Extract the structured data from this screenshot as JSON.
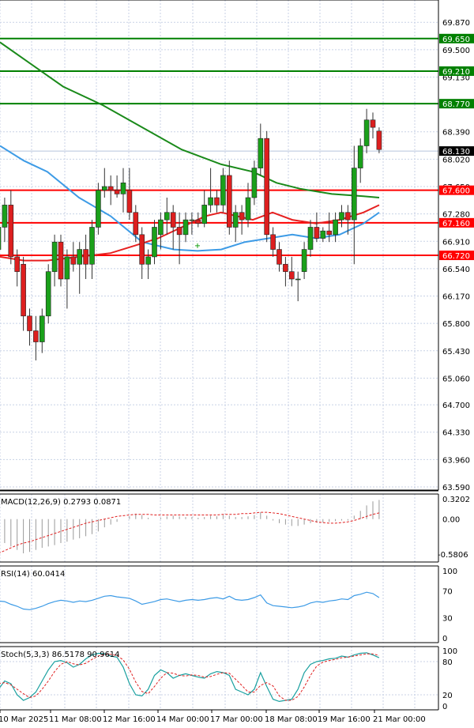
{
  "chart_data": {
    "type": "candlestick",
    "price_ticks": [
      "69.870",
      "69.500",
      "69.130",
      "68.770",
      "68.390",
      "68.020",
      "67.650",
      "67.280",
      "66.910",
      "66.540",
      "66.170",
      "65.800",
      "65.430",
      "65.060",
      "64.700",
      "64.330",
      "63.960",
      "63.590"
    ],
    "price_range": [
      63.59,
      70.15
    ],
    "hlines": [
      {
        "value": 69.65,
        "label": "69.650",
        "color": "#008000"
      },
      {
        "value": 69.21,
        "label": "69.210",
        "color": "#008000"
      },
      {
        "value": 68.77,
        "label": "68.770",
        "color": "#008000"
      },
      {
        "value": 67.6,
        "label": "67.600",
        "color": "#ff0000"
      },
      {
        "value": 67.16,
        "label": "67.160",
        "color": "#ff0000"
      },
      {
        "value": 66.72,
        "label": "66.720",
        "color": "#ff0000"
      }
    ],
    "current_price": {
      "value": 68.13,
      "label": "68.130"
    },
    "candles": [
      {
        "o": 66.8,
        "h": 67.2,
        "l": 66.5,
        "c": 67.1
      },
      {
        "o": 67.1,
        "h": 67.5,
        "l": 66.9,
        "c": 67.4
      },
      {
        "o": 67.4,
        "h": 67.6,
        "l": 66.6,
        "c": 66.7
      },
      {
        "o": 66.7,
        "h": 66.8,
        "l": 66.3,
        "c": 66.5
      },
      {
        "o": 66.6,
        "h": 66.7,
        "l": 65.7,
        "c": 65.9
      },
      {
        "o": 65.9,
        "h": 66.0,
        "l": 65.5,
        "c": 65.7
      },
      {
        "o": 65.7,
        "h": 65.9,
        "l": 65.3,
        "c": 65.55
      },
      {
        "o": 65.55,
        "h": 66.0,
        "l": 65.4,
        "c": 65.9
      },
      {
        "o": 65.9,
        "h": 66.6,
        "l": 65.8,
        "c": 66.5
      },
      {
        "o": 66.5,
        "h": 67.0,
        "l": 66.3,
        "c": 66.9
      },
      {
        "o": 66.9,
        "h": 67.0,
        "l": 66.3,
        "c": 66.4
      },
      {
        "o": 66.4,
        "h": 66.8,
        "l": 66.0,
        "c": 66.7
      },
      {
        "o": 66.7,
        "h": 66.9,
        "l": 66.5,
        "c": 66.6
      },
      {
        "o": 66.6,
        "h": 66.9,
        "l": 66.2,
        "c": 66.8
      },
      {
        "o": 66.8,
        "h": 67.0,
        "l": 66.4,
        "c": 66.6
      },
      {
        "o": 66.6,
        "h": 67.2,
        "l": 66.4,
        "c": 67.1
      },
      {
        "o": 67.1,
        "h": 67.7,
        "l": 67.0,
        "c": 67.6
      },
      {
        "o": 67.6,
        "h": 67.9,
        "l": 67.5,
        "c": 67.65
      },
      {
        "o": 67.65,
        "h": 67.8,
        "l": 67.4,
        "c": 67.6
      },
      {
        "o": 67.6,
        "h": 67.8,
        "l": 67.5,
        "c": 67.55
      },
      {
        "o": 67.55,
        "h": 67.9,
        "l": 67.3,
        "c": 67.7
      },
      {
        "o": 67.6,
        "h": 67.9,
        "l": 67.2,
        "c": 67.3
      },
      {
        "o": 67.3,
        "h": 67.4,
        "l": 66.9,
        "c": 67.0
      },
      {
        "o": 67.0,
        "h": 67.1,
        "l": 66.4,
        "c": 66.6
      },
      {
        "o": 66.6,
        "h": 66.8,
        "l": 66.4,
        "c": 66.7
      },
      {
        "o": 66.7,
        "h": 67.2,
        "l": 66.6,
        "c": 67.1
      },
      {
        "o": 67.0,
        "h": 67.3,
        "l": 66.8,
        "c": 67.2
      },
      {
        "o": 67.2,
        "h": 67.5,
        "l": 67.0,
        "c": 67.3
      },
      {
        "o": 67.3,
        "h": 67.4,
        "l": 66.8,
        "c": 67.1
      },
      {
        "o": 67.1,
        "h": 67.3,
        "l": 66.6,
        "c": 67.0
      },
      {
        "o": 67.0,
        "h": 67.3,
        "l": 66.9,
        "c": 67.2
      },
      {
        "o": 67.2,
        "h": 67.3,
        "l": 67.0,
        "c": 67.2
      },
      {
        "o": 67.2,
        "h": 67.3,
        "l": 67.1,
        "c": 67.15
      },
      {
        "o": 67.15,
        "h": 67.6,
        "l": 67.1,
        "c": 67.4
      },
      {
        "o": 67.4,
        "h": 67.9,
        "l": 67.3,
        "c": 67.5
      },
      {
        "o": 67.5,
        "h": 67.6,
        "l": 67.3,
        "c": 67.4
      },
      {
        "o": 67.4,
        "h": 67.9,
        "l": 67.3,
        "c": 67.8
      },
      {
        "o": 67.8,
        "h": 68.0,
        "l": 67.0,
        "c": 67.1
      },
      {
        "o": 67.1,
        "h": 67.4,
        "l": 66.9,
        "c": 67.3
      },
      {
        "o": 67.3,
        "h": 67.4,
        "l": 67.0,
        "c": 67.2
      },
      {
        "o": 67.2,
        "h": 67.7,
        "l": 67.1,
        "c": 67.5
      },
      {
        "o": 67.5,
        "h": 68.0,
        "l": 67.4,
        "c": 67.9
      },
      {
        "o": 67.9,
        "h": 68.5,
        "l": 67.8,
        "c": 68.3
      },
      {
        "o": 68.3,
        "h": 68.4,
        "l": 66.9,
        "c": 67.0
      },
      {
        "o": 67.0,
        "h": 67.1,
        "l": 66.7,
        "c": 66.8
      },
      {
        "o": 66.8,
        "h": 66.9,
        "l": 66.5,
        "c": 66.6
      },
      {
        "o": 66.6,
        "h": 66.7,
        "l": 66.3,
        "c": 66.5
      },
      {
        "o": 66.5,
        "h": 66.7,
        "l": 66.3,
        "c": 66.4
      },
      {
        "o": 66.4,
        "h": 66.5,
        "l": 66.1,
        "c": 66.4
      },
      {
        "o": 66.5,
        "h": 66.9,
        "l": 66.4,
        "c": 66.8
      },
      {
        "o": 66.8,
        "h": 67.2,
        "l": 66.7,
        "c": 67.1
      },
      {
        "o": 67.1,
        "h": 67.3,
        "l": 66.9,
        "c": 66.95
      },
      {
        "o": 66.95,
        "h": 67.1,
        "l": 66.9,
        "c": 67.05
      },
      {
        "o": 67.05,
        "h": 67.3,
        "l": 66.9,
        "c": 67.0
      },
      {
        "o": 67.0,
        "h": 67.3,
        "l": 66.9,
        "c": 67.2
      },
      {
        "o": 67.2,
        "h": 67.4,
        "l": 67.1,
        "c": 67.3
      },
      {
        "o": 67.3,
        "h": 67.4,
        "l": 67.0,
        "c": 67.2
      },
      {
        "o": 67.2,
        "h": 68.2,
        "l": 66.6,
        "c": 67.9
      },
      {
        "o": 67.9,
        "h": 68.3,
        "l": 67.7,
        "c": 68.2
      },
      {
        "o": 68.2,
        "h": 68.7,
        "l": 68.1,
        "c": 68.55
      },
      {
        "o": 68.55,
        "h": 68.65,
        "l": 68.3,
        "c": 68.45
      },
      {
        "o": 68.4,
        "h": 68.45,
        "l": 68.1,
        "c": 68.15
      }
    ],
    "ma_green": [
      [
        0,
        69.6
      ],
      [
        40,
        69.3
      ],
      [
        80,
        69.0
      ],
      [
        130,
        68.75
      ],
      [
        180,
        68.45
      ],
      [
        230,
        68.15
      ],
      [
        280,
        67.95
      ],
      [
        320,
        67.85
      ],
      [
        350,
        67.7
      ],
      [
        380,
        67.62
      ],
      [
        420,
        67.55
      ],
      [
        460,
        67.52
      ],
      [
        480,
        67.5
      ]
    ],
    "ma_blue": [
      [
        0,
        68.2
      ],
      [
        30,
        68.0
      ],
      [
        60,
        67.85
      ],
      [
        100,
        67.5
      ],
      [
        140,
        67.25
      ],
      [
        180,
        66.9
      ],
      [
        220,
        66.8
      ],
      [
        250,
        66.78
      ],
      [
        280,
        66.8
      ],
      [
        310,
        66.9
      ],
      [
        340,
        66.95
      ],
      [
        370,
        67.0
      ],
      [
        400,
        66.95
      ],
      [
        430,
        67.0
      ],
      [
        460,
        67.15
      ],
      [
        480,
        67.3
      ]
    ],
    "ma_red": [
      [
        0,
        66.7
      ],
      [
        30,
        66.65
      ],
      [
        60,
        66.65
      ],
      [
        100,
        66.7
      ],
      [
        140,
        66.75
      ],
      [
        170,
        66.85
      ],
      [
        200,
        66.95
      ],
      [
        230,
        67.1
      ],
      [
        260,
        67.25
      ],
      [
        280,
        67.3
      ],
      [
        300,
        67.25
      ],
      [
        320,
        67.2
      ],
      [
        345,
        67.3
      ],
      [
        370,
        67.2
      ],
      [
        400,
        67.15
      ],
      [
        430,
        67.2
      ],
      [
        460,
        67.3
      ],
      [
        480,
        67.4
      ]
    ],
    "cross_marker": {
      "x": 250,
      "value": 66.85
    },
    "macd": {
      "label": "MACD(12,26,9) 0.2793 0.0871",
      "ticks": [
        "0.3202",
        "0.00",
        "-0.5806"
      ],
      "range": [
        -0.5806,
        0.3202
      ],
      "hist": [
        -0.45,
        -0.35,
        -0.4,
        -0.45,
        -0.5,
        -0.48,
        -0.45,
        -0.42,
        -0.4,
        -0.38,
        -0.35,
        -0.33,
        -0.3,
        -0.28,
        -0.25,
        -0.22,
        -0.18,
        -0.12,
        -0.08,
        -0.04,
        0.0,
        0.04,
        0.08,
        0.06,
        0.02,
        0.0,
        0.02,
        0.04,
        0.05,
        0.04,
        0.03,
        0.03,
        0.02,
        0.03,
        0.05,
        0.04,
        0.06,
        0.05,
        0.03,
        0.03,
        0.04,
        0.06,
        0.1,
        0.05,
        -0.02,
        -0.06,
        -0.08,
        -0.1,
        -0.1,
        -0.08,
        -0.06,
        -0.05,
        -0.05,
        -0.04,
        -0.03,
        -0.02,
        -0.02,
        0.05,
        0.12,
        0.2,
        0.26,
        0.28
      ],
      "signal": [
        -0.5,
        -0.46,
        -0.42,
        -0.38,
        -0.35,
        -0.33,
        -0.3,
        -0.27,
        -0.24,
        -0.21,
        -0.18,
        -0.15,
        -0.12,
        -0.09,
        -0.06,
        -0.04,
        -0.02,
        0.0,
        0.02,
        0.04,
        0.05,
        0.06,
        0.07,
        0.07,
        0.07,
        0.06,
        0.06,
        0.06,
        0.06,
        0.06,
        0.06,
        0.06,
        0.06,
        0.06,
        0.06,
        0.06,
        0.07,
        0.07,
        0.07,
        0.08,
        0.08,
        0.09,
        0.1,
        0.1,
        0.09,
        0.08,
        0.06,
        0.04,
        0.02,
        0.0,
        -0.02,
        -0.04,
        -0.05,
        -0.06,
        -0.06,
        -0.05,
        -0.04,
        -0.02,
        0.01,
        0.04,
        0.07,
        0.09
      ]
    },
    "rsi": {
      "label": "RSI(14) 60.0414",
      "ticks": [
        "100",
        "70",
        "30",
        "0"
      ],
      "range": [
        0,
        100
      ],
      "values": [
        55,
        54,
        50,
        47,
        43,
        42,
        44,
        47,
        51,
        54,
        56,
        55,
        53,
        55,
        54,
        56,
        59,
        62,
        63,
        61,
        60,
        59,
        55,
        50,
        52,
        54,
        57,
        58,
        56,
        54,
        56,
        57,
        56,
        57,
        59,
        60,
        58,
        62,
        57,
        56,
        57,
        60,
        64,
        52,
        48,
        47,
        46,
        45,
        46,
        48,
        52,
        54,
        53,
        55,
        56,
        58,
        57,
        63,
        65,
        68,
        66,
        60
      ]
    },
    "stoch": {
      "label": "Stoch(5,3,3) 86.5178 90.9614",
      "ticks": [
        "100",
        "80",
        "20",
        "0"
      ],
      "range": [
        0,
        100
      ],
      "k": [
        30,
        45,
        40,
        20,
        10,
        15,
        25,
        45,
        65,
        80,
        82,
        78,
        70,
        75,
        85,
        92,
        95,
        94,
        90,
        88,
        70,
        40,
        20,
        18,
        30,
        55,
        65,
        60,
        50,
        55,
        58,
        55,
        52,
        50,
        58,
        62,
        60,
        55,
        30,
        25,
        20,
        30,
        60,
        35,
        12,
        8,
        10,
        12,
        30,
        60,
        75,
        80,
        82,
        85,
        86,
        90,
        88,
        92,
        95,
        96,
        92,
        87
      ],
      "d": [
        40,
        42,
        38,
        30,
        22,
        15,
        18,
        30,
        45,
        62,
        75,
        80,
        76,
        74,
        77,
        84,
        90,
        93,
        93,
        91,
        83,
        66,
        43,
        26,
        22,
        35,
        50,
        60,
        59,
        55,
        54,
        56,
        55,
        52,
        53,
        57,
        60,
        59,
        48,
        37,
        25,
        25,
        37,
        42,
        36,
        18,
        10,
        10,
        17,
        34,
        55,
        72,
        79,
        82,
        84,
        87,
        88,
        90,
        92,
        94,
        94,
        91
      ]
    },
    "x_ticks": [
      "10 Mar 2025",
      "11 Mar 08:00",
      "12 Mar 16:00",
      "14 Mar 00:00",
      "17 Mar 00:00",
      "18 Mar 08:00",
      "19 Mar 16:00",
      "21 Mar 00:00"
    ]
  }
}
